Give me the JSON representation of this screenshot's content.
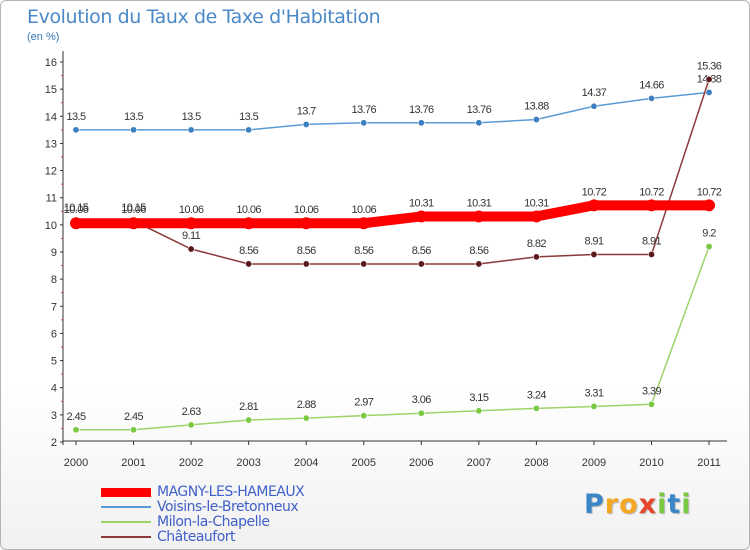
{
  "header": {
    "title": "Evolution du Taux de Taxe d'Habitation",
    "subtitle": "(en %)"
  },
  "chart_data": {
    "type": "line",
    "title": "Evolution du Taux de Taxe d'Habitation",
    "ylabel": "(en %)",
    "xlabel": "",
    "x": [
      "2000",
      "2001",
      "2002",
      "2003",
      "2004",
      "2005",
      "2006",
      "2007",
      "2008",
      "2009",
      "2010",
      "2011"
    ],
    "ylim": [
      2,
      16
    ],
    "yticks": [
      "2",
      "3",
      "4",
      "5",
      "6",
      "7",
      "8",
      "9",
      "10",
      "11",
      "12",
      "13",
      "14",
      "15",
      "16"
    ],
    "grid": false,
    "legend_position": "bottom-left",
    "series": [
      {
        "name": "Voisins-le-Bretonneux",
        "color": "#5b9bd5",
        "marker_color": "#3d7fc0",
        "values": [
          13.5,
          13.5,
          13.5,
          13.5,
          13.7,
          13.76,
          13.76,
          13.76,
          13.88,
          14.37,
          14.66,
          14.88
        ],
        "labels": [
          "13.5",
          "13.5",
          "13.5",
          "13.5",
          "13.7",
          "13.76",
          "13.76",
          "13.76",
          "13.88",
          "14.37",
          "14.66",
          "14.88"
        ]
      },
      {
        "name": "Milon-la-Chapelle",
        "color": "#9ed36a",
        "marker_color": "#7ac943",
        "values": [
          2.45,
          2.45,
          2.63,
          2.81,
          2.88,
          2.97,
          3.06,
          3.15,
          3.24,
          3.31,
          3.39,
          9.2
        ],
        "labels": [
          "2.45",
          "2.45",
          "2.63",
          "2.81",
          "2.88",
          "2.97",
          "3.06",
          "3.15",
          "3.24",
          "3.31",
          "3.39",
          "9.2"
        ]
      },
      {
        "name": "Châteaufort",
        "color": "#8b3a3a",
        "marker_color": "#5a1a1a",
        "values": [
          10.15,
          10.15,
          9.11,
          8.56,
          8.56,
          8.56,
          8.56,
          8.56,
          8.82,
          8.91,
          8.91,
          15.36
        ],
        "labels": [
          "10.15",
          "10.15",
          "9.11",
          "8.56",
          "8.56",
          "8.56",
          "8.56",
          "8.56",
          "8.82",
          "8.91",
          "8.91",
          "15.36"
        ]
      },
      {
        "name": "MAGNY-LES-HAMEAUX",
        "color": "#ff0000",
        "marker_color": "#ff0000",
        "highlight": true,
        "values": [
          10.06,
          10.06,
          10.06,
          10.06,
          10.06,
          10.06,
          10.31,
          10.31,
          10.31,
          10.72,
          10.72,
          10.72
        ],
        "labels": [
          "10.06",
          "10.06",
          "10.06",
          "10.06",
          "10.06",
          "10.06",
          "10.31",
          "10.31",
          "10.31",
          "10.72",
          "10.72",
          "10.72"
        ]
      }
    ]
  },
  "legend": {
    "items": [
      {
        "label": "MAGNY-LES-HAMEAUX",
        "color": "#ff0000"
      },
      {
        "label": "Voisins-le-Bretonneux",
        "color": "#5b9bd5"
      },
      {
        "label": "Milon-la-Chapelle",
        "color": "#9ed36a"
      },
      {
        "label": "Châteaufort",
        "color": "#8b3a3a"
      }
    ]
  },
  "logo": {
    "letters": [
      "P",
      "r",
      "o",
      "x",
      "i",
      "t",
      "i"
    ],
    "colors": [
      "#3a86c8",
      "#f5a623",
      "#f5a623",
      "#e8462a",
      "#7ac943",
      "#3a86c8",
      "#7ac943"
    ]
  }
}
